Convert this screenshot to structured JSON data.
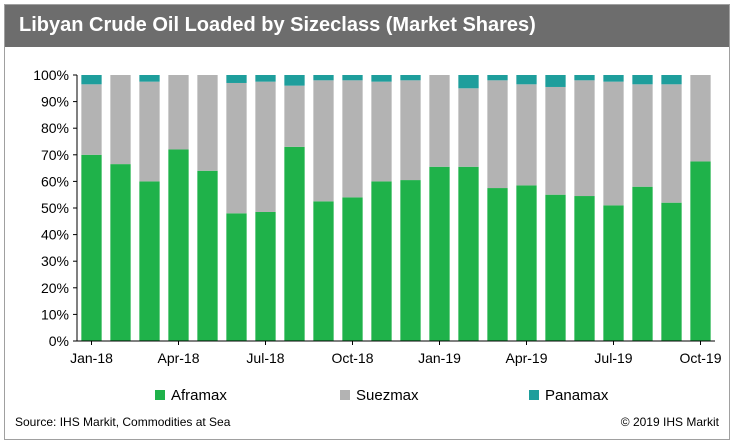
{
  "title": "Libyan Crude Oil Loaded by Sizeclass (Market Shares)",
  "source": "Source: IHS Markit, Commodities at Sea",
  "copyright": "© 2019 IHS Markit",
  "colors": {
    "aframax": "#1fb24a",
    "suezmax": "#b3b3b3",
    "panamax": "#1e9e9c",
    "title_bg": "#6d6d6d"
  },
  "chart_data": {
    "type": "bar",
    "stacked": true,
    "title": "Libyan Crude Oil Loaded by Sizeclass (Market Shares)",
    "categories": [
      "Jan-18",
      "Feb-18",
      "Mar-18",
      "Apr-18",
      "May-18",
      "Jun-18",
      "Jul-18",
      "Aug-18",
      "Sep-18",
      "Oct-18",
      "Nov-18",
      "Dec-18",
      "Jan-19",
      "Feb-19",
      "Mar-19",
      "Apr-19",
      "May-19",
      "Jun-19",
      "Jul-19",
      "Aug-19",
      "Sep-19",
      "Oct-19"
    ],
    "x_tick_labels": [
      "Jan-18",
      "Apr-18",
      "Jul-18",
      "Oct-18",
      "Jan-19",
      "Apr-19",
      "Jul-19",
      "Oct-19"
    ],
    "x_tick_indices": [
      0,
      3,
      6,
      9,
      12,
      15,
      18,
      21
    ],
    "y_tick_labels": [
      "0%",
      "10%",
      "20%",
      "30%",
      "40%",
      "50%",
      "60%",
      "70%",
      "80%",
      "90%",
      "100%"
    ],
    "ylim": [
      0,
      100
    ],
    "unit": "%",
    "legend_position": "bottom",
    "series": [
      {
        "name": "Aframax",
        "values": [
          70,
          66.5,
          60,
          72,
          64,
          48,
          48.5,
          73,
          52.5,
          54,
          60,
          60.5,
          65.5,
          65.5,
          57.5,
          58.5,
          55,
          54.5,
          51,
          58,
          52,
          67.5
        ]
      },
      {
        "name": "Suezmax",
        "values": [
          26.5,
          33.5,
          37.5,
          28,
          36,
          49,
          49,
          23,
          45.5,
          44,
          37.5,
          37.5,
          34.5,
          29.5,
          40.5,
          38,
          40.5,
          43.5,
          46.5,
          38.5,
          44.5,
          32.5
        ]
      },
      {
        "name": "Panamax",
        "values": [
          3.5,
          0,
          2.5,
          0,
          0,
          3,
          2.5,
          4,
          2,
          2,
          2.5,
          2,
          0,
          5,
          2,
          3.5,
          4.5,
          2,
          2.5,
          3.5,
          3.5,
          0
        ]
      }
    ]
  }
}
